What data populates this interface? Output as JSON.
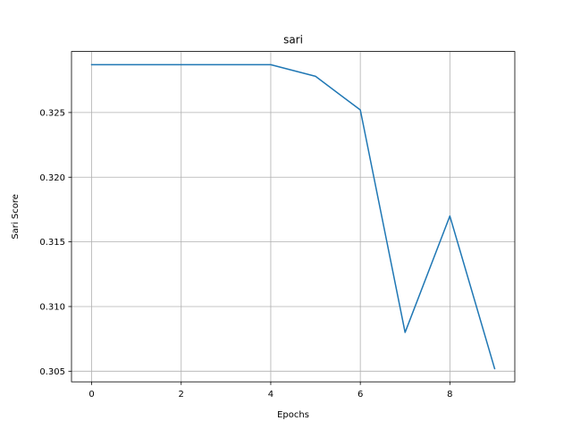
{
  "chart_data": {
    "type": "line",
    "title": "sari",
    "xlabel": "Epochs",
    "ylabel": "Sari Score",
    "grid": true,
    "xlim": [
      -0.45,
      9.45
    ],
    "ylim": [
      0.30418,
      0.32972
    ],
    "x_ticks": [
      0,
      2,
      4,
      6,
      8
    ],
    "x_tick_labels": [
      "0",
      "2",
      "4",
      "6",
      "8"
    ],
    "y_ticks": [
      0.305,
      0.31,
      0.315,
      0.32,
      0.325
    ],
    "y_tick_labels": [
      "0.305",
      "0.310",
      "0.315",
      "0.320",
      "0.325"
    ],
    "series": [
      {
        "color": "#1f77b4",
        "x": [
          0,
          1,
          2,
          3,
          4,
          5,
          6,
          7,
          8,
          9
        ],
        "y": [
          0.3287,
          0.3287,
          0.3287,
          0.3287,
          0.3287,
          0.3278,
          0.3252,
          0.308,
          0.317,
          0.3052
        ]
      }
    ]
  }
}
